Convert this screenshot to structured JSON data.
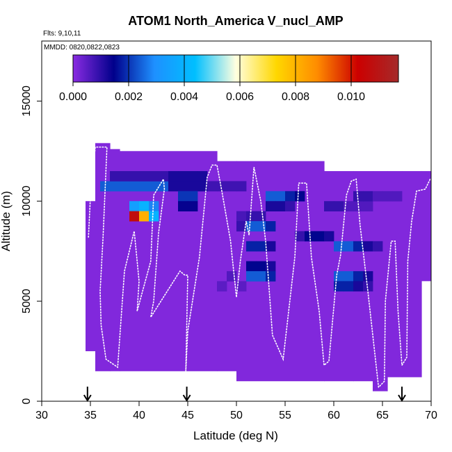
{
  "chart_data": {
    "type": "heatmap",
    "title": "ATOM1 North_America V_nucl_AMP",
    "flights_label": "Flts: 9,10,11",
    "dates_label": "MMDD: 0820,0822,0823",
    "xlabel": "Latitude (deg N)",
    "ylabel": "Altitude (m)",
    "xlim": [
      30,
      70
    ],
    "ylim": [
      0,
      18000
    ],
    "x_ticks": [
      "30",
      "35",
      "40",
      "45",
      "50",
      "55",
      "60",
      "65",
      "70"
    ],
    "y_ticks": [
      "0",
      "5000",
      "10000",
      "15000"
    ],
    "colorbar": {
      "range": [
        0,
        0.0117
      ],
      "tick_labels": [
        "0.000",
        "0.002",
        "0.004",
        "0.006",
        "0.008",
        "0.010"
      ],
      "colors": [
        "#8a2be2",
        "#00008b",
        "#1e90ff",
        "#00bfff",
        "#ffffe0",
        "#ffd700",
        "#ff8c00",
        "#cc0000",
        "#a52a2a"
      ]
    },
    "background_value": 0.0001,
    "coverage": [
      [
        34.5,
        35.5,
        2500,
        10000
      ],
      [
        35.5,
        37,
        1500,
        12900
      ],
      [
        37,
        38,
        1500,
        12600
      ],
      [
        38,
        48,
        1500,
        12500
      ],
      [
        48,
        50,
        1500,
        12000
      ],
      [
        50,
        59,
        1000,
        12000
      ],
      [
        59,
        62,
        1000,
        11500
      ],
      [
        62,
        64,
        1000,
        11500
      ],
      [
        64,
        65.5,
        500,
        11500
      ],
      [
        65.5,
        67,
        1200,
        11500
      ],
      [
        67,
        69,
        1200,
        11500
      ],
      [
        69,
        70,
        6000,
        11500
      ]
    ],
    "cells": [
      [
        36,
        10750,
        0.0024
      ],
      [
        37,
        10750,
        0.0024
      ],
      [
        38,
        10750,
        0.0024
      ],
      [
        39,
        10750,
        0.0024
      ],
      [
        40,
        10750,
        0.0024
      ],
      [
        41,
        10750,
        0.0024
      ],
      [
        42,
        10750,
        0.0024
      ],
      [
        43,
        10750,
        0.0012
      ],
      [
        44,
        10750,
        0.0012
      ],
      [
        45,
        10750,
        0.0012
      ],
      [
        46,
        10750,
        0.0012
      ],
      [
        37,
        11250,
        0.0009
      ],
      [
        38,
        11250,
        0.0009
      ],
      [
        39,
        11250,
        0.0009
      ],
      [
        40,
        11250,
        0.0009
      ],
      [
        41,
        11250,
        0.0009
      ],
      [
        42,
        11250,
        0.0009
      ],
      [
        43,
        11250,
        0.0012
      ],
      [
        44,
        11250,
        0.0012
      ],
      [
        45,
        11250,
        0.0012
      ],
      [
        46,
        11250,
        0.0012
      ],
      [
        39,
        9750,
        0.0034
      ],
      [
        40,
        9750,
        0.004
      ],
      [
        41,
        9750,
        0.0028
      ],
      [
        39,
        9250,
        0.0107
      ],
      [
        40,
        9250,
        0.0081
      ],
      [
        41,
        9250,
        0.004
      ],
      [
        44,
        10250,
        0.002
      ],
      [
        45,
        10250,
        0.002
      ],
      [
        44,
        9750,
        0.0014
      ],
      [
        45,
        9750,
        0.0014
      ],
      [
        50,
        9250,
        0.0007
      ],
      [
        51,
        9250,
        0.0009
      ],
      [
        52,
        9250,
        0.0009
      ],
      [
        50,
        8750,
        0.0009
      ],
      [
        51,
        8750,
        0.0024
      ],
      [
        52,
        8750,
        0.0024
      ],
      [
        53,
        8750,
        0.0018
      ],
      [
        51,
        7750,
        0.0018
      ],
      [
        52,
        7750,
        0.0018
      ],
      [
        53,
        7750,
        0.0012
      ],
      [
        51,
        6750,
        0.0015
      ],
      [
        52,
        6750,
        0.0015
      ],
      [
        53,
        6750,
        0.0012
      ],
      [
        51,
        6250,
        0.0024
      ],
      [
        52,
        6250,
        0.0024
      ],
      [
        53,
        6250,
        0.0018
      ],
      [
        49,
        6250,
        0.0006
      ],
      [
        48,
        5750,
        0.0005
      ],
      [
        50,
        5750,
        0.0005
      ],
      [
        47,
        10750,
        0.0008
      ],
      [
        48,
        10750,
        0.0008
      ],
      [
        49,
        10750,
        0.0008
      ],
      [
        50,
        10750,
        0.0008
      ],
      [
        53,
        10250,
        0.0024
      ],
      [
        54,
        10250,
        0.0024
      ],
      [
        55,
        10250,
        0.0018
      ],
      [
        56,
        10250,
        0.0015
      ],
      [
        53,
        9750,
        0.0012
      ],
      [
        54,
        9750,
        0.0012
      ],
      [
        55,
        9750,
        0.0009
      ],
      [
        56,
        8250,
        0.0009
      ],
      [
        57,
        8250,
        0.0015
      ],
      [
        58,
        8250,
        0.0015
      ],
      [
        59,
        8250,
        0.0012
      ],
      [
        60,
        7750,
        0.0024
      ],
      [
        61,
        7750,
        0.0024
      ],
      [
        62,
        7750,
        0.0018
      ],
      [
        63,
        7750,
        0.0012
      ],
      [
        64,
        7750,
        0.0009
      ],
      [
        59,
        9750,
        0.0009
      ],
      [
        60,
        9750,
        0.0009
      ],
      [
        61,
        9750,
        0.0006
      ],
      [
        62,
        9750,
        0.0006
      ],
      [
        63,
        9750,
        0.0006
      ],
      [
        60,
        6250,
        0.0024
      ],
      [
        61,
        6250,
        0.0024
      ],
      [
        62,
        6250,
        0.0018
      ],
      [
        63,
        6250,
        0.0012
      ],
      [
        60,
        5750,
        0.0018
      ],
      [
        61,
        5750,
        0.0018
      ],
      [
        62,
        5750,
        0.0012
      ],
      [
        63,
        5750,
        0.0009
      ],
      [
        62,
        10250,
        0.0009
      ],
      [
        63,
        10250,
        0.0009
      ],
      [
        64,
        10250,
        0.0006
      ],
      [
        65,
        10250,
        0.0006
      ],
      [
        66,
        10250,
        0.0006
      ]
    ],
    "flight_track": [
      [
        34.8,
        8200
      ],
      [
        35.0,
        10200
      ],
      [
        35.5,
        12700
      ],
      [
        36.7,
        12700
      ],
      [
        36.3,
        8200
      ],
      [
        36.0,
        5500
      ],
      [
        36.1,
        3800
      ],
      [
        36.6,
        2100
      ],
      [
        37.8,
        1700
      ],
      [
        38.5,
        6500
      ],
      [
        39.5,
        8500
      ],
      [
        40.0,
        6000
      ],
      [
        39.8,
        4500
      ],
      [
        41.2,
        7000
      ],
      [
        41.5,
        10300
      ],
      [
        42.5,
        11100
      ],
      [
        42.6,
        10600
      ],
      [
        42.0,
        8400
      ],
      [
        41.5,
        5000
      ],
      [
        41.2,
        4200
      ],
      [
        44.2,
        6500
      ],
      [
        44.7,
        6300
      ],
      [
        45.0,
        6300
      ],
      [
        44.8,
        1500
      ],
      [
        45.0,
        3500
      ],
      [
        46.2,
        7200
      ],
      [
        47.0,
        11200
      ],
      [
        47.5,
        11800
      ],
      [
        48.0,
        11800
      ],
      [
        48.5,
        10500
      ],
      [
        49.4,
        8000
      ],
      [
        49.5,
        7500
      ],
      [
        50.0,
        5200
      ],
      [
        50.4,
        7000
      ],
      [
        51.0,
        9000
      ],
      [
        51.3,
        8300
      ],
      [
        51.8,
        11700
      ],
      [
        52.5,
        10000
      ],
      [
        53.0,
        8000
      ],
      [
        53.3,
        6000
      ],
      [
        53.7,
        3300
      ],
      [
        54.8,
        2100
      ],
      [
        55.6,
        5500
      ],
      [
        56.0,
        7200
      ],
      [
        56.4,
        10900
      ],
      [
        57.2,
        10900
      ],
      [
        57.7,
        7200
      ],
      [
        58.5,
        4500
      ],
      [
        59.0,
        1800
      ],
      [
        59.5,
        2000
      ],
      [
        60.3,
        6300
      ],
      [
        60.7,
        7300
      ],
      [
        61.3,
        10300
      ],
      [
        61.8,
        11000
      ],
      [
        62.3,
        11100
      ],
      [
        62.7,
        8800
      ],
      [
        63.5,
        5500
      ],
      [
        64.6,
        700
      ],
      [
        65.2,
        1000
      ],
      [
        65.3,
        5000
      ],
      [
        65.9,
        8000
      ],
      [
        66.3,
        8000
      ],
      [
        66.6,
        4500
      ],
      [
        67.0,
        1800
      ],
      [
        67.5,
        2200
      ],
      [
        67.6,
        7000
      ],
      [
        68.0,
        9000
      ],
      [
        68.5,
        10500
      ],
      [
        69.4,
        10600
      ],
      [
        69.9,
        11100
      ]
    ],
    "arrow_latitudes": [
      34.7,
      44.9,
      67.0
    ]
  }
}
